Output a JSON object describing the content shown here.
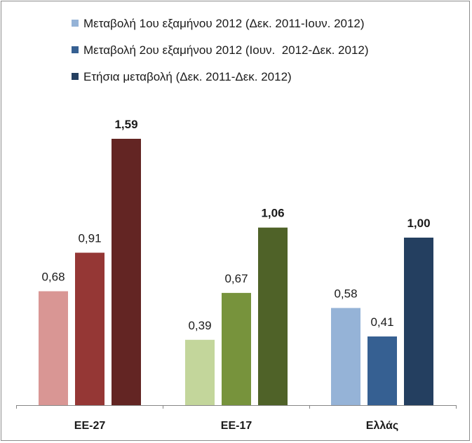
{
  "chart_data": {
    "type": "bar",
    "categories": [
      "ΕΕ-27",
      "ΕΕ-17",
      "Ελλάς"
    ],
    "series": [
      {
        "name": "Μεταβολή 1ου εξαμήνου 2012 (Δεκ. 2011-Ιουν. 2012)",
        "values": [
          0.68,
          0.39,
          0.58
        ],
        "labels": [
          "0,68",
          "0,39",
          "0,58"
        ],
        "bold": false
      },
      {
        "name": "Μεταβολή 2ου εξαμήνου 2012 (Ιουν.  2012-Δεκ. 2012)",
        "values": [
          0.91,
          0.67,
          0.41
        ],
        "labels": [
          "0,91",
          "0,67",
          "0,41"
        ],
        "bold": false
      },
      {
        "name": "Ετήσια μεταβολή (Δεκ. 2011-Δεκ. 2012)",
        "values": [
          1.59,
          1.06,
          1.0
        ],
        "labels": [
          "1,59",
          "1,06",
          "1,00"
        ],
        "bold": true
      }
    ],
    "ylim": [
      0,
      1.6
    ],
    "grid": false,
    "legend_position": "top",
    "legend_colors": [
      "#95b3d7",
      "#366092",
      "#243f60"
    ],
    "bar_colors": [
      [
        "#d99694",
        "#953735",
        "#632523"
      ],
      [
        "#c3d69b",
        "#77933c",
        "#4f6228"
      ],
      [
        "#95b3d7",
        "#366092",
        "#243f60"
      ]
    ],
    "axis_color": "#868686"
  }
}
